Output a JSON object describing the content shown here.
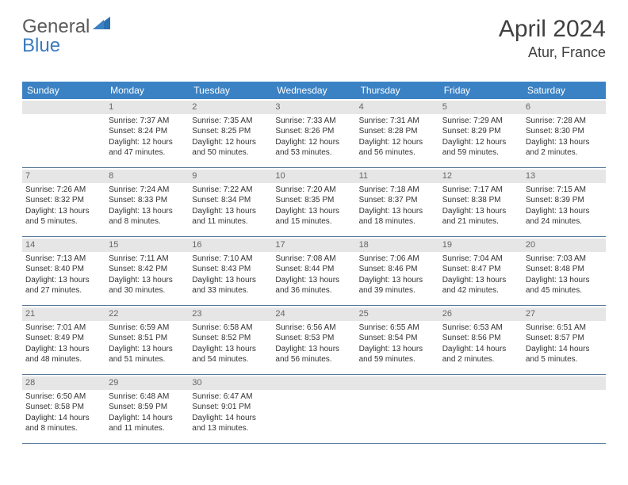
{
  "logo": {
    "general": "General",
    "blue": "Blue"
  },
  "title": "April 2024",
  "location": "Atur, France",
  "colors": {
    "header_bg": "#3b82c4",
    "header_text": "#ffffff",
    "daynum_bg": "#e6e6e6",
    "daynum_text": "#666666",
    "row_border": "#5a7a9a",
    "logo_blue": "#3b7bbf",
    "logo_grey": "#5a5a5a"
  },
  "weekdays": [
    "Sunday",
    "Monday",
    "Tuesday",
    "Wednesday",
    "Thursday",
    "Friday",
    "Saturday"
  ],
  "weeks": [
    [
      {
        "day": "",
        "lines": [
          "",
          "",
          "",
          ""
        ]
      },
      {
        "day": "1",
        "lines": [
          "Sunrise: 7:37 AM",
          "Sunset: 8:24 PM",
          "Daylight: 12 hours",
          "and 47 minutes."
        ]
      },
      {
        "day": "2",
        "lines": [
          "Sunrise: 7:35 AM",
          "Sunset: 8:25 PM",
          "Daylight: 12 hours",
          "and 50 minutes."
        ]
      },
      {
        "day": "3",
        "lines": [
          "Sunrise: 7:33 AM",
          "Sunset: 8:26 PM",
          "Daylight: 12 hours",
          "and 53 minutes."
        ]
      },
      {
        "day": "4",
        "lines": [
          "Sunrise: 7:31 AM",
          "Sunset: 8:28 PM",
          "Daylight: 12 hours",
          "and 56 minutes."
        ]
      },
      {
        "day": "5",
        "lines": [
          "Sunrise: 7:29 AM",
          "Sunset: 8:29 PM",
          "Daylight: 12 hours",
          "and 59 minutes."
        ]
      },
      {
        "day": "6",
        "lines": [
          "Sunrise: 7:28 AM",
          "Sunset: 8:30 PM",
          "Daylight: 13 hours",
          "and 2 minutes."
        ]
      }
    ],
    [
      {
        "day": "7",
        "lines": [
          "Sunrise: 7:26 AM",
          "Sunset: 8:32 PM",
          "Daylight: 13 hours",
          "and 5 minutes."
        ]
      },
      {
        "day": "8",
        "lines": [
          "Sunrise: 7:24 AM",
          "Sunset: 8:33 PM",
          "Daylight: 13 hours",
          "and 8 minutes."
        ]
      },
      {
        "day": "9",
        "lines": [
          "Sunrise: 7:22 AM",
          "Sunset: 8:34 PM",
          "Daylight: 13 hours",
          "and 11 minutes."
        ]
      },
      {
        "day": "10",
        "lines": [
          "Sunrise: 7:20 AM",
          "Sunset: 8:35 PM",
          "Daylight: 13 hours",
          "and 15 minutes."
        ]
      },
      {
        "day": "11",
        "lines": [
          "Sunrise: 7:18 AM",
          "Sunset: 8:37 PM",
          "Daylight: 13 hours",
          "and 18 minutes."
        ]
      },
      {
        "day": "12",
        "lines": [
          "Sunrise: 7:17 AM",
          "Sunset: 8:38 PM",
          "Daylight: 13 hours",
          "and 21 minutes."
        ]
      },
      {
        "day": "13",
        "lines": [
          "Sunrise: 7:15 AM",
          "Sunset: 8:39 PM",
          "Daylight: 13 hours",
          "and 24 minutes."
        ]
      }
    ],
    [
      {
        "day": "14",
        "lines": [
          "Sunrise: 7:13 AM",
          "Sunset: 8:40 PM",
          "Daylight: 13 hours",
          "and 27 minutes."
        ]
      },
      {
        "day": "15",
        "lines": [
          "Sunrise: 7:11 AM",
          "Sunset: 8:42 PM",
          "Daylight: 13 hours",
          "and 30 minutes."
        ]
      },
      {
        "day": "16",
        "lines": [
          "Sunrise: 7:10 AM",
          "Sunset: 8:43 PM",
          "Daylight: 13 hours",
          "and 33 minutes."
        ]
      },
      {
        "day": "17",
        "lines": [
          "Sunrise: 7:08 AM",
          "Sunset: 8:44 PM",
          "Daylight: 13 hours",
          "and 36 minutes."
        ]
      },
      {
        "day": "18",
        "lines": [
          "Sunrise: 7:06 AM",
          "Sunset: 8:46 PM",
          "Daylight: 13 hours",
          "and 39 minutes."
        ]
      },
      {
        "day": "19",
        "lines": [
          "Sunrise: 7:04 AM",
          "Sunset: 8:47 PM",
          "Daylight: 13 hours",
          "and 42 minutes."
        ]
      },
      {
        "day": "20",
        "lines": [
          "Sunrise: 7:03 AM",
          "Sunset: 8:48 PM",
          "Daylight: 13 hours",
          "and 45 minutes."
        ]
      }
    ],
    [
      {
        "day": "21",
        "lines": [
          "Sunrise: 7:01 AM",
          "Sunset: 8:49 PM",
          "Daylight: 13 hours",
          "and 48 minutes."
        ]
      },
      {
        "day": "22",
        "lines": [
          "Sunrise: 6:59 AM",
          "Sunset: 8:51 PM",
          "Daylight: 13 hours",
          "and 51 minutes."
        ]
      },
      {
        "day": "23",
        "lines": [
          "Sunrise: 6:58 AM",
          "Sunset: 8:52 PM",
          "Daylight: 13 hours",
          "and 54 minutes."
        ]
      },
      {
        "day": "24",
        "lines": [
          "Sunrise: 6:56 AM",
          "Sunset: 8:53 PM",
          "Daylight: 13 hours",
          "and 56 minutes."
        ]
      },
      {
        "day": "25",
        "lines": [
          "Sunrise: 6:55 AM",
          "Sunset: 8:54 PM",
          "Daylight: 13 hours",
          "and 59 minutes."
        ]
      },
      {
        "day": "26",
        "lines": [
          "Sunrise: 6:53 AM",
          "Sunset: 8:56 PM",
          "Daylight: 14 hours",
          "and 2 minutes."
        ]
      },
      {
        "day": "27",
        "lines": [
          "Sunrise: 6:51 AM",
          "Sunset: 8:57 PM",
          "Daylight: 14 hours",
          "and 5 minutes."
        ]
      }
    ],
    [
      {
        "day": "28",
        "lines": [
          "Sunrise: 6:50 AM",
          "Sunset: 8:58 PM",
          "Daylight: 14 hours",
          "and 8 minutes."
        ]
      },
      {
        "day": "29",
        "lines": [
          "Sunrise: 6:48 AM",
          "Sunset: 8:59 PM",
          "Daylight: 14 hours",
          "and 11 minutes."
        ]
      },
      {
        "day": "30",
        "lines": [
          "Sunrise: 6:47 AM",
          "Sunset: 9:01 PM",
          "Daylight: 14 hours",
          "and 13 minutes."
        ]
      },
      {
        "day": "",
        "lines": [
          "",
          "",
          "",
          ""
        ]
      },
      {
        "day": "",
        "lines": [
          "",
          "",
          "",
          ""
        ]
      },
      {
        "day": "",
        "lines": [
          "",
          "",
          "",
          ""
        ]
      },
      {
        "day": "",
        "lines": [
          "",
          "",
          "",
          ""
        ]
      }
    ]
  ]
}
